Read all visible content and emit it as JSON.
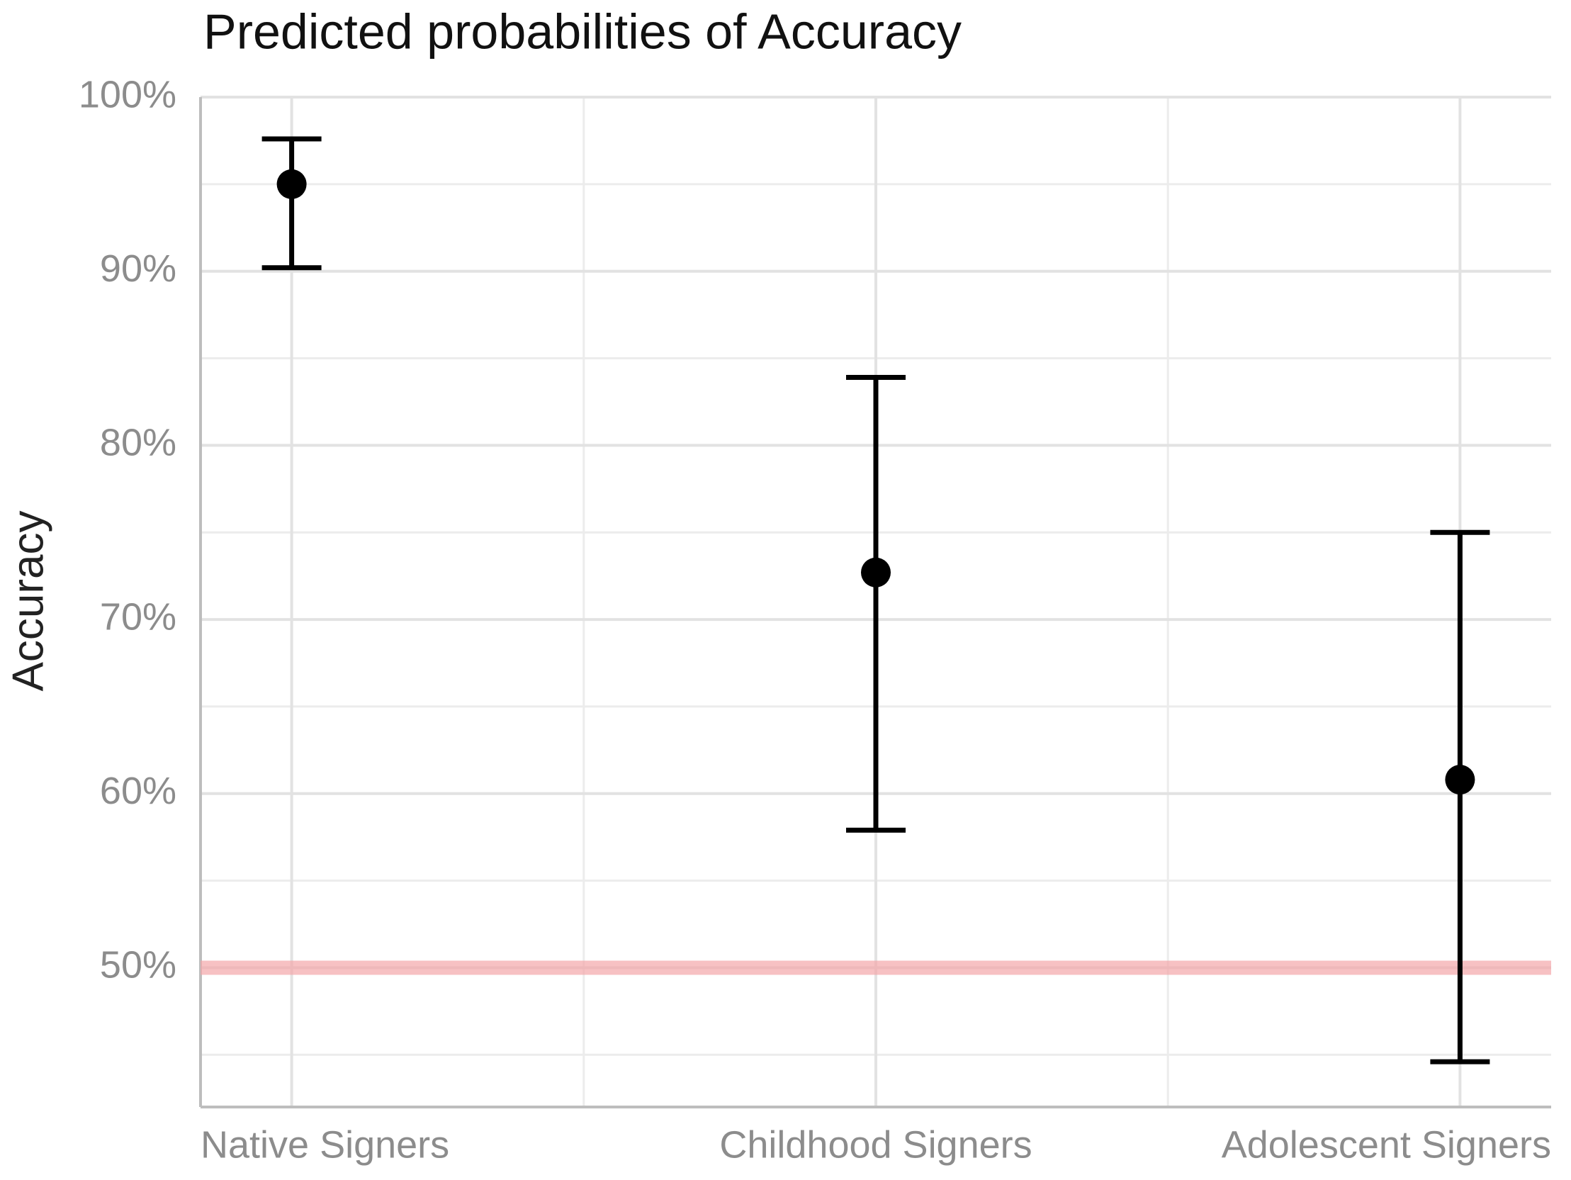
{
  "chart_data": {
    "type": "pointrange",
    "title": "Predicted probabilities of Accuracy",
    "y_label": "Accuracy",
    "categories": [
      "Native Signers",
      "Childhood Signers",
      "Adolescent Signers"
    ],
    "values": [
      95.0,
      72.7,
      60.8
    ],
    "lower": [
      90.2,
      57.9,
      44.6
    ],
    "upper": [
      97.6,
      83.9,
      75.0
    ],
    "color": "#000000",
    "ylim": [
      42,
      100
    ],
    "yticks": [
      {
        "value": 50,
        "label": "50%"
      },
      {
        "value": 60,
        "label": "60%"
      },
      {
        "value": 70,
        "label": "70%"
      },
      {
        "value": 80,
        "label": "80%"
      },
      {
        "value": 90,
        "label": "90%"
      },
      {
        "value": 100,
        "label": "100%"
      }
    ],
    "minor_yticks": [
      45,
      55,
      65,
      75,
      85,
      95
    ],
    "reference_line": {
      "value": 50,
      "color": "#f4a6aa"
    },
    "grid": true
  }
}
